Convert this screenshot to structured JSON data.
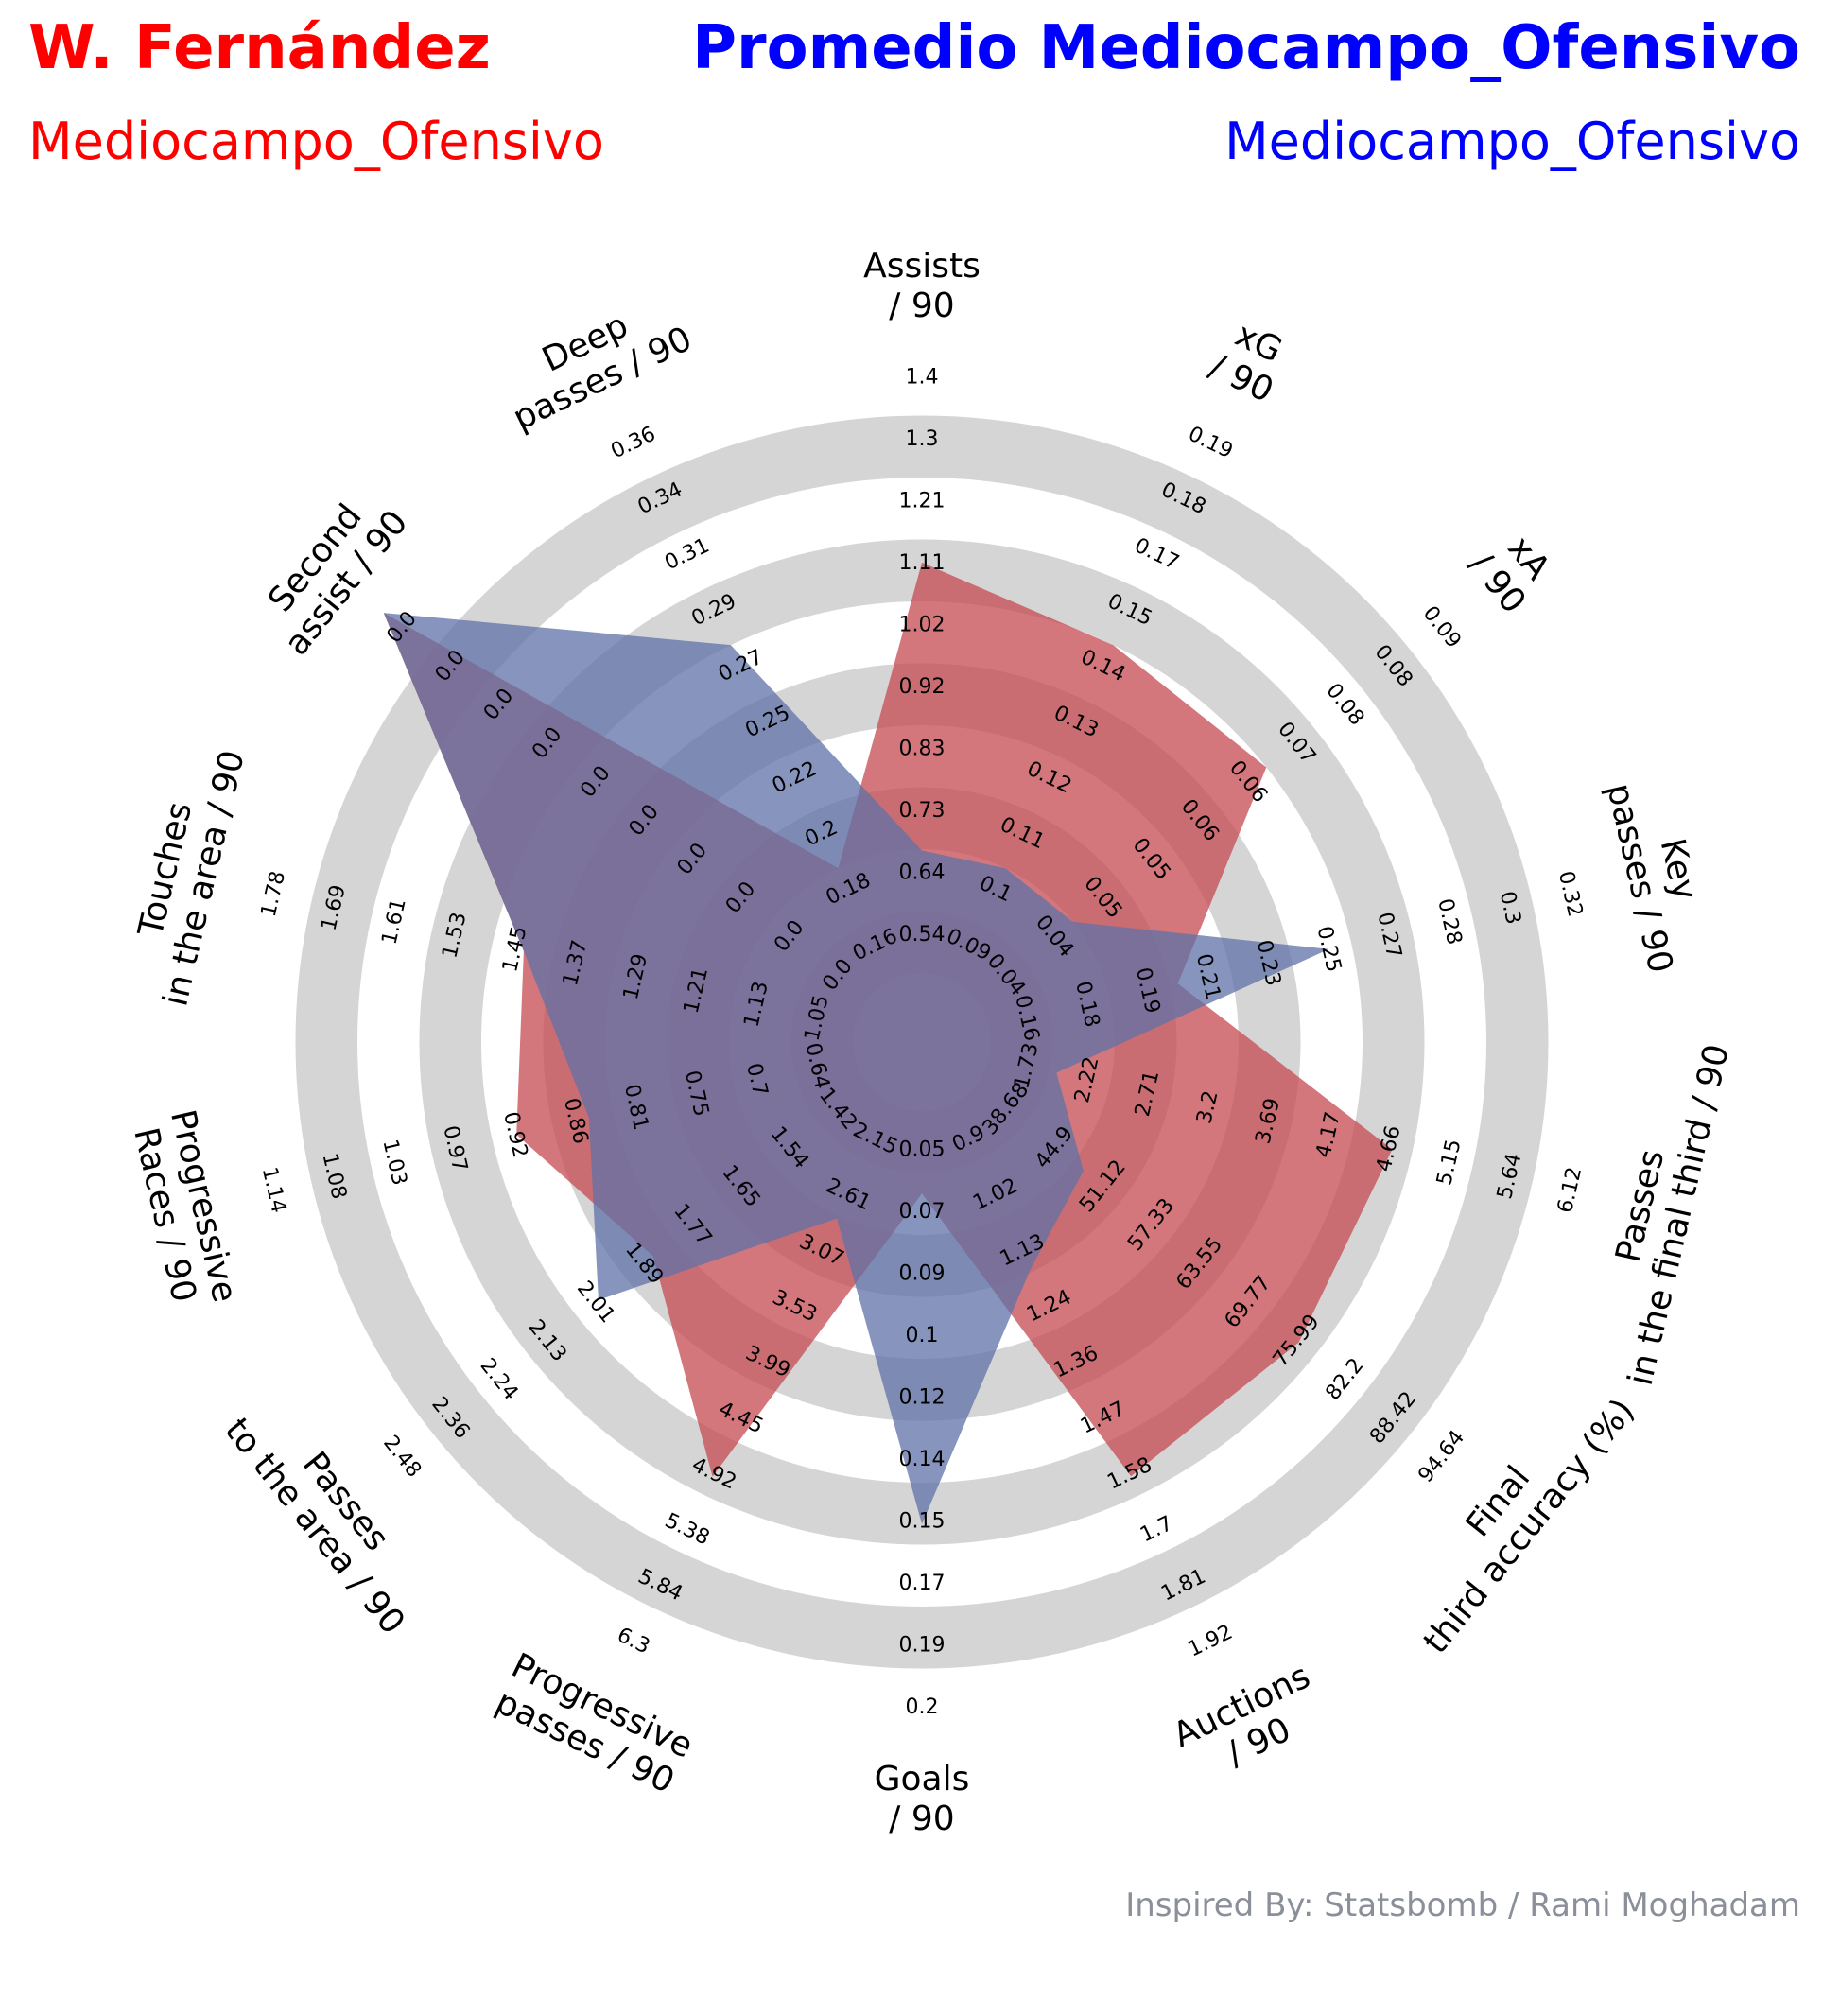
{
  "header": {
    "player_name": "W. Fernández",
    "player_position": "Mediocampo_Ofensivo",
    "comparison_name": "Promedio Mediocampo_Ofensivo",
    "comparison_position": "Mediocampo_Ofensivo"
  },
  "credit": "Inspired By: Statsbomb / Rami Moghadam",
  "colors": {
    "player": "#ff0000",
    "comparison": "#0000ff",
    "player_fill": "#c44a50",
    "comparison_fill": "#5f72a8",
    "ring": "#d5d5d5",
    "credit": "#8a8f9a"
  },
  "chart_data": {
    "type": "radar",
    "parameters": [
      {
        "label": "Assists\n/ 90",
        "ticks": [
          "0.54",
          "0.64",
          "0.73",
          "0.83",
          "0.92",
          "1.02",
          "1.11",
          "1.21",
          "1.3",
          "1.4"
        ]
      },
      {
        "label": "xG\n/ 90",
        "ticks": [
          "0.09",
          "0.1",
          "0.11",
          "0.12",
          "0.13",
          "0.14",
          "0.15",
          "0.17",
          "0.18",
          "0.19"
        ]
      },
      {
        "label": "xA\n/ 90",
        "ticks": [
          "0.04",
          "0.04",
          "0.05",
          "0.05",
          "0.06",
          "0.06",
          "0.07",
          "0.08",
          "0.08",
          "0.09"
        ]
      },
      {
        "label": "Key\npasses / 90",
        "ticks": [
          "0.16",
          "0.18",
          "0.19",
          "0.21",
          "0.23",
          "0.25",
          "0.27",
          "0.28",
          "0.3",
          "0.32"
        ]
      },
      {
        "label": "Passes\nin the final third / 90",
        "ticks": [
          "1.73",
          "2.22",
          "2.71",
          "3.2",
          "3.69",
          "4.17",
          "4.66",
          "5.15",
          "5.64",
          "6.12"
        ]
      },
      {
        "label": "Final\nthird accuracy (%)",
        "ticks": [
          "38.68",
          "44.9",
          "51.12",
          "57.33",
          "63.55",
          "69.77",
          "75.99",
          "82.2",
          "88.42",
          "94.64"
        ]
      },
      {
        "label": "Auctions\n/ 90",
        "ticks": [
          "0.9",
          "1.02",
          "1.13",
          "1.24",
          "1.36",
          "1.47",
          "1.58",
          "1.7",
          "1.81",
          "1.92"
        ]
      },
      {
        "label": "Goals\n/ 90",
        "ticks": [
          "0.05",
          "0.07",
          "0.09",
          "0.1",
          "0.12",
          "0.14",
          "0.15",
          "0.17",
          "0.19",
          "0.2"
        ]
      },
      {
        "label": "Progressive\npasses / 90",
        "ticks": [
          "2.15",
          "2.61",
          "3.07",
          "3.53",
          "3.99",
          "4.45",
          "4.92",
          "5.38",
          "5.84",
          "6.3"
        ]
      },
      {
        "label": "Passes\nto the area / 90",
        "ticks": [
          "1.42",
          "1.54",
          "1.65",
          "1.77",
          "1.89",
          "2.01",
          "2.13",
          "2.24",
          "2.36",
          "2.48"
        ]
      },
      {
        "label": "Progressive\nRaces / 90",
        "ticks": [
          "0.64",
          "0.7",
          "0.75",
          "0.81",
          "0.86",
          "0.92",
          "0.97",
          "1.03",
          "1.08",
          "1.14"
        ]
      },
      {
        "label": "Touches\nin the area / 90",
        "ticks": [
          "1.05",
          "1.13",
          "1.21",
          "1.29",
          "1.37",
          "1.45",
          "1.53",
          "1.61",
          "1.69",
          "1.78"
        ]
      },
      {
        "label": "Second\nassist / 90",
        "ticks": [
          "0.0",
          "0.0",
          "0.0",
          "0.0",
          "0.0",
          "0.0",
          "0.0",
          "0.0",
          "0.0",
          "0.0"
        ]
      },
      {
        "label": "Deep\npasses / 90",
        "ticks": [
          "0.16",
          "0.18",
          "0.2",
          "0.22",
          "0.25",
          "0.27",
          "0.29",
          "0.31",
          "0.34",
          "0.36"
        ]
      }
    ],
    "series": [
      {
        "name": "W. Fernández",
        "values": [
          1.11,
          0.15,
          0.07,
          0.21,
          4.66,
          75.99,
          1.58,
          0.07,
          4.92,
          1.89,
          0.92,
          1.45,
          0.0,
          0.2
        ]
      },
      {
        "name": "Promedio Mediocampo_Ofensivo",
        "values": [
          0.71,
          0.11,
          0.05,
          0.25,
          2.22,
          51.12,
          1.2,
          0.15,
          3.0,
          2.01,
          0.86,
          1.45,
          0.0,
          0.28
        ]
      }
    ]
  }
}
